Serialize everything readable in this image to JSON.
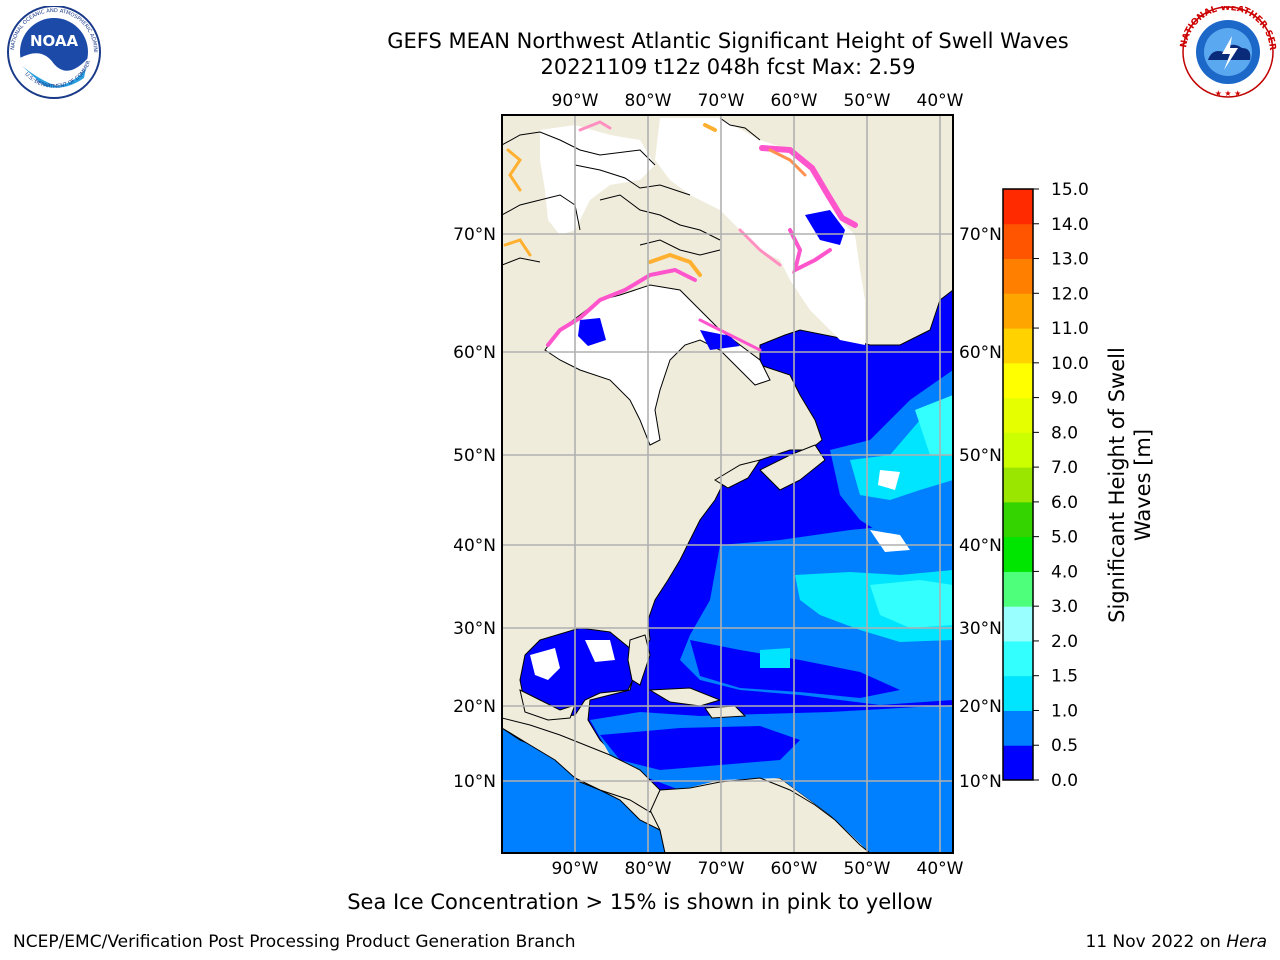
{
  "header": {
    "title_line1": "GEFS MEAN Northwest Atlantic Significant Height of Swell Waves",
    "title_line2": "20221109 t12z 048h fcst   Max: 2.59",
    "noaa_logo_text": "NOAA",
    "noaa_ring_text": "NATIONAL OCEANIC AND ATMOSPHERIC ADMINISTRATION",
    "noaa_ring_bottom": "U.S. DEPARTMENT OF COMMERCE",
    "nws_ring_text": "NATIONAL WEATHER SERVICE"
  },
  "map": {
    "lon_labels": [
      "90°W",
      "80°W",
      "70°W",
      "60°W",
      "50°W",
      "40°W"
    ],
    "lat_labels": [
      "70°N",
      "60°N",
      "50°N",
      "40°N",
      "30°N",
      "20°N",
      "10°N"
    ],
    "land_color": "#efecdc",
    "ocean_colors": {
      "lowest": "#0000ff",
      "low": "#007fff",
      "mid": "#00e5ff",
      "high": "#00ffff"
    }
  },
  "colorbar": {
    "label_line1": "Significant Height of Swell",
    "label_line2": "Waves [m]",
    "ticks": [
      "0.0",
      "0.5",
      "1.0",
      "1.5",
      "2.0",
      "3.0",
      "4.0",
      "5.0",
      "6.0",
      "7.0",
      "8.0",
      "9.0",
      "10.0",
      "11.0",
      "12.0",
      "13.0",
      "14.0",
      "15.0"
    ],
    "colors": [
      "#0000ff",
      "#0080ff",
      "#00e5ff",
      "#33ffff",
      "#99ffff",
      "#4dff7a",
      "#00e600",
      "#33d400",
      "#9ae600",
      "#ccff00",
      "#e6ff00",
      "#ffff00",
      "#ffd200",
      "#ffa500",
      "#ff8000",
      "#ff5500",
      "#ff2a00"
    ]
  },
  "footer": {
    "note": "Sea Ice Concentration > 15% is shown in pink to yellow",
    "credit": "NCEP/EMC/Verification Post Processing Product Generation Branch",
    "date": "11 Nov 2022 on",
    "host": "Hera"
  }
}
